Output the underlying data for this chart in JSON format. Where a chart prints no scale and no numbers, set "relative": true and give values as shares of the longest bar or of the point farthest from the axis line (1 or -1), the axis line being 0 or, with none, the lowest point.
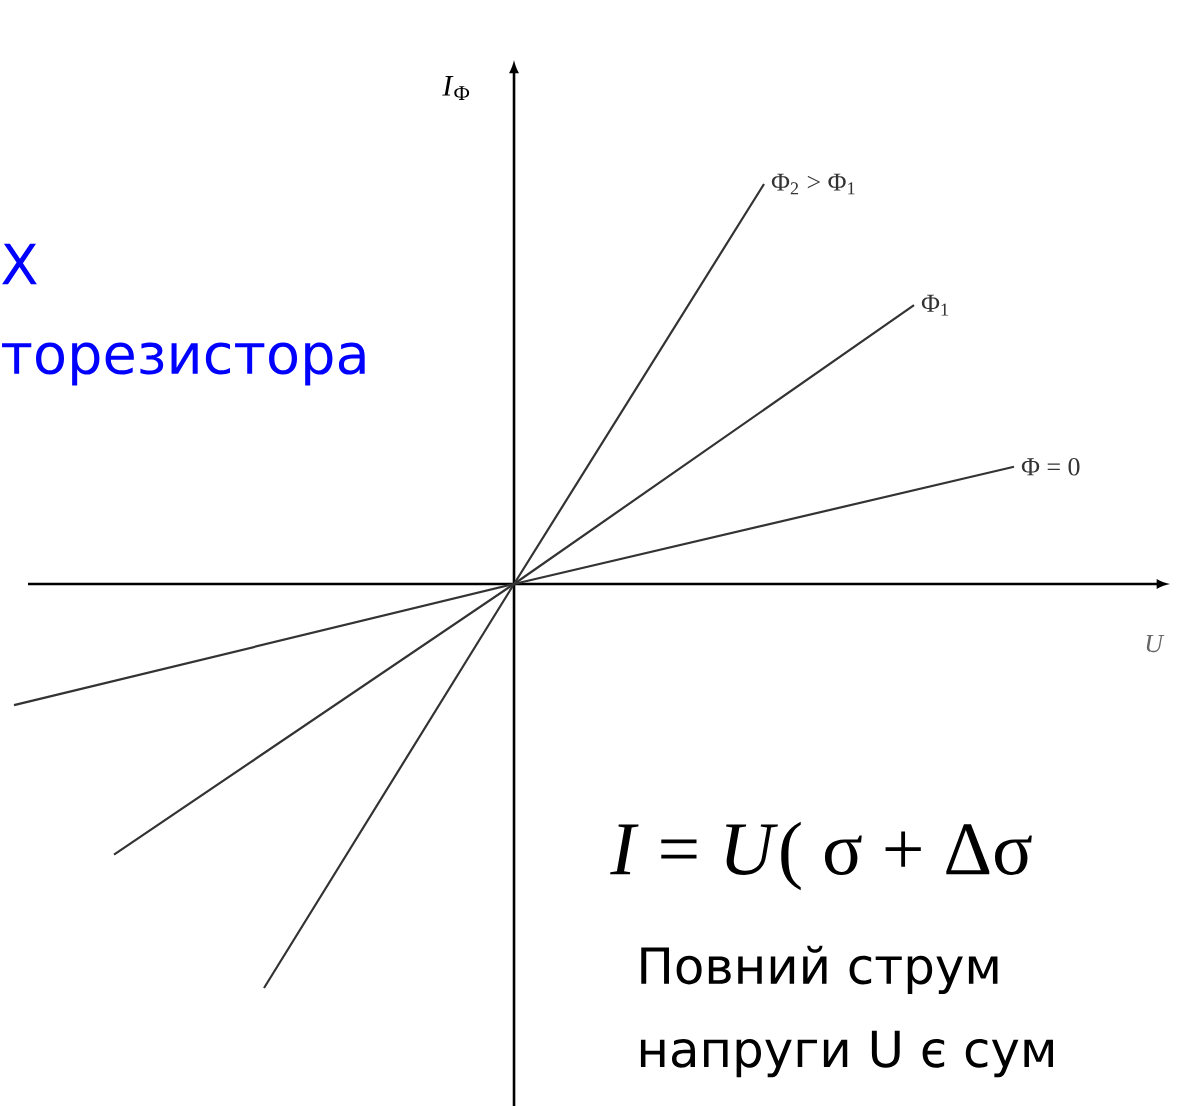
{
  "chart_data": {
    "type": "line",
    "relative": true,
    "xlabel": "U",
    "ylabel": "*I*$_{Ф}$",
    "marker": "none",
    "categories": [
      null,
      null,
      null,
      null,
      null,
      null,
      null,
      null,
      null,
      null,
      null,
      null,
      null,
      null,
      null,
      null,
      null,
      null,
      null,
      null,
      null
    ],
    "series": [
      {
        "name": "Φ$_{2}$ > Φ$_{1}$",
        "color": "#333333",
        "values": [
          null,
          null,
          null,
          null,
          null,
          -1,
          null,
          null,
          null,
          null,
          0,
          null,
          null,
          null,
          null,
          0.99,
          null,
          null,
          null,
          null,
          null
        ]
      },
      {
        "name": "Φ$_{1}$",
        "color": "#333333",
        "values": [
          null,
          null,
          -0.67,
          null,
          null,
          null,
          null,
          null,
          null,
          null,
          0,
          null,
          null,
          null,
          null,
          null,
          null,
          null,
          0.69,
          null,
          null
        ]
      },
      {
        "name": "Φ = 0",
        "color": "#333333",
        "values": [
          -0.3,
          null,
          null,
          null,
          null,
          null,
          null,
          null,
          null,
          null,
          0,
          null,
          null,
          null,
          null,
          null,
          null,
          null,
          null,
          null,
          0.29
        ]
      }
    ],
    "annotations": [
      "Х",
      "торезистора",
      "*I* = *U*( σ + Δσ",
      "Повний струм",
      "напруги U є сум"
    ]
  }
}
